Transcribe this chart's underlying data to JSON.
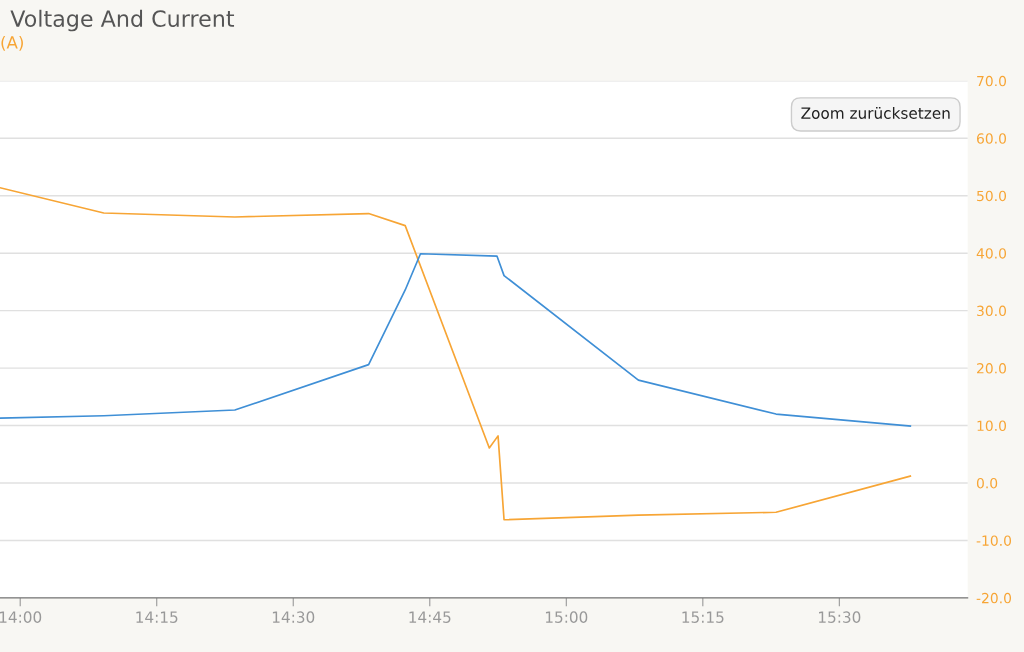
{
  "chart_data": {
    "type": "line",
    "title": "Voltage And Current",
    "ylabel": "(A)",
    "xlim": [
      13.963,
      15.735
    ],
    "xticks": [
      {
        "value": 14.0,
        "label": "14:00"
      },
      {
        "value": 14.25,
        "label": "14:15"
      },
      {
        "value": 14.5,
        "label": "14:30"
      },
      {
        "value": 14.75,
        "label": "14:45"
      },
      {
        "value": 15.0,
        "label": "15:00"
      },
      {
        "value": 15.25,
        "label": "15:15"
      },
      {
        "value": 15.5,
        "label": "15:30"
      }
    ],
    "ylim": [
      -20,
      70
    ],
    "yticks": [
      {
        "value": -20,
        "label": "-20.0"
      },
      {
        "value": -10,
        "label": "-10.0"
      },
      {
        "value": 0,
        "label": "0.0"
      },
      {
        "value": 10,
        "label": "10.0"
      },
      {
        "value": 20,
        "label": "20.0"
      },
      {
        "value": 30,
        "label": "30.0"
      },
      {
        "value": 40,
        "label": "40.0"
      },
      {
        "value": 50,
        "label": "50.0"
      },
      {
        "value": 60,
        "label": "60.0"
      },
      {
        "value": 70,
        "label": "70.0"
      }
    ],
    "grid": "y",
    "legend": false,
    "marker": "none",
    "line_style": "solid",
    "annotations": [
      "Zoom zurücksetzen"
    ],
    "series": [
      {
        "color": "#f7a535",
        "x": [
          13.963,
          14.153,
          14.393,
          14.638,
          14.705,
          14.859,
          14.875,
          14.886,
          15.132,
          15.384,
          15.63
        ],
        "values": [
          51.4,
          47.0,
          46.3,
          46.9,
          44.8,
          6.1,
          8.2,
          -6.4,
          -5.6,
          -5.1,
          1.2
        ]
      },
      {
        "color": "#3f8fd6",
        "x": [
          13.963,
          14.153,
          14.393,
          14.638,
          14.705,
          14.733,
          14.873,
          14.886,
          15.132,
          15.384,
          15.63
        ],
        "values": [
          11.3,
          11.7,
          12.7,
          20.6,
          33.6,
          39.9,
          39.5,
          36.1,
          17.9,
          12.0,
          9.9
        ]
      }
    ]
  }
}
